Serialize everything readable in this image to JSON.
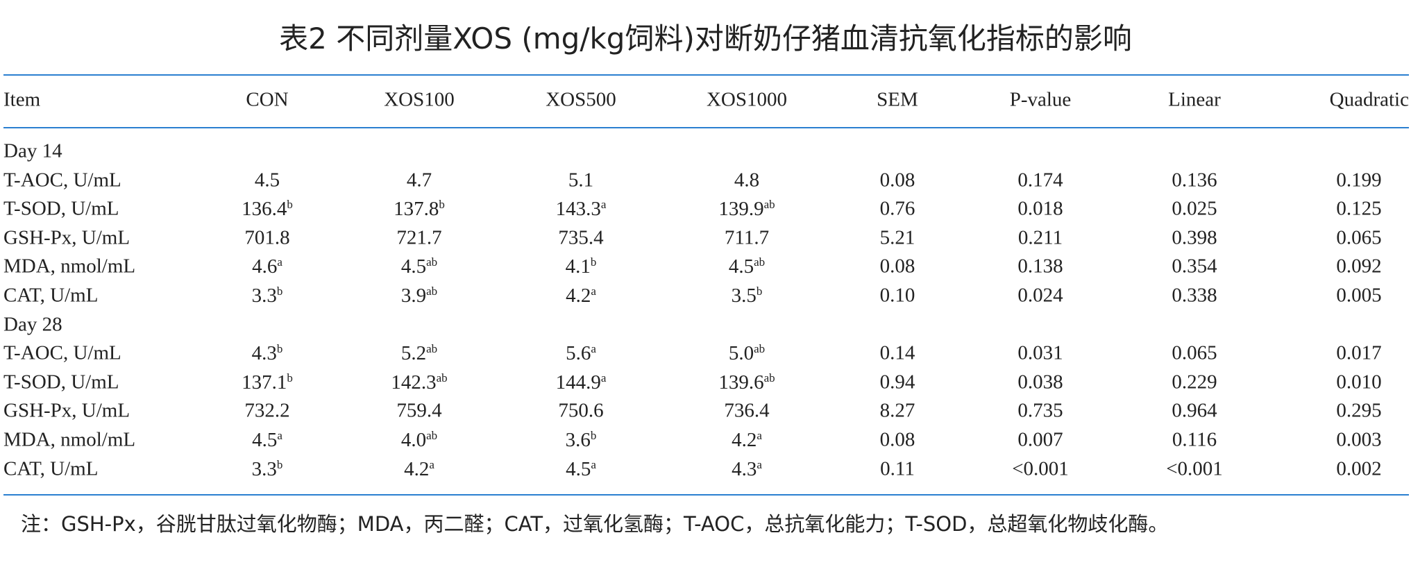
{
  "title": "表2 不同剂量XOS (mg/kg饲料)对断奶仔猪血清抗氧化指标的影响",
  "table": {
    "header": [
      "Item",
      "CON",
      "XOS100",
      "XOS500",
      "XOS1000",
      "SEM",
      "P-value",
      "Linear",
      "Quadratic"
    ],
    "groups": [
      {
        "label": "Day 14",
        "rows": [
          {
            "item": "T-AOC, U/mL",
            "cells": [
              "4.5",
              "4.7",
              "5.1",
              "4.8",
              "0.08",
              "0.174",
              "0.136",
              "0.199"
            ]
          },
          {
            "item": "T-SOD, U/mL",
            "cells": [
              {
                "text": "136.4",
                "sup": "b"
              },
              {
                "text": "137.8",
                "sup": "b"
              },
              {
                "text": "143.3",
                "sup": "a"
              },
              {
                "text": "139.9",
                "sup": "ab"
              },
              "0.76",
              "0.018",
              "0.025",
              "0.125"
            ]
          },
          {
            "item": "GSH-Px, U/mL",
            "cells": [
              "701.8",
              "721.7",
              "735.4",
              "711.7",
              "5.21",
              "0.211",
              "0.398",
              "0.065"
            ]
          },
          {
            "item": "MDA, nmol/mL",
            "cells": [
              {
                "text": "4.6",
                "sup": "a"
              },
              {
                "text": "4.5",
                "sup": "ab"
              },
              {
                "text": "4.1",
                "sup": "b"
              },
              {
                "text": "4.5",
                "sup": "ab"
              },
              "0.08",
              "0.138",
              "0.354",
              "0.092"
            ]
          },
          {
            "item": "CAT, U/mL",
            "cells": [
              {
                "text": "3.3",
                "sup": "b"
              },
              {
                "text": "3.9",
                "sup": "ab"
              },
              {
                "text": "4.2",
                "sup": "a"
              },
              {
                "text": "3.5",
                "sup": "b"
              },
              "0.10",
              "0.024",
              "0.338",
              "0.005"
            ]
          }
        ]
      },
      {
        "label": "Day 28",
        "rows": [
          {
            "item": "T-AOC, U/mL",
            "cells": [
              {
                "text": "4.3",
                "sup": "b"
              },
              {
                "text": "5.2",
                "sup": "ab"
              },
              {
                "text": "5.6",
                "sup": "a"
              },
              {
                "text": "5.0",
                "sup": "ab"
              },
              "0.14",
              "0.031",
              "0.065",
              "0.017"
            ]
          },
          {
            "item": "T-SOD, U/mL",
            "cells": [
              {
                "text": "137.1",
                "sup": "b"
              },
              {
                "text": "142.3",
                "sup": "ab"
              },
              {
                "text": "144.9",
                "sup": "a"
              },
              {
                "text": "139.6",
                "sup": "ab"
              },
              "0.94",
              "0.038",
              "0.229",
              "0.010"
            ]
          },
          {
            "item": "GSH-Px, U/mL",
            "cells": [
              "732.2",
              "759.4",
              "750.6",
              "736.4",
              "8.27",
              "0.735",
              "0.964",
              "0.295"
            ]
          },
          {
            "item": "MDA, nmol/mL",
            "cells": [
              {
                "text": "4.5",
                "sup": "a"
              },
              {
                "text": "4.0",
                "sup": "ab"
              },
              {
                "text": "3.6",
                "sup": "b"
              },
              {
                "text": "4.2",
                "sup": "a"
              },
              "0.08",
              "0.007",
              "0.116",
              "0.003"
            ]
          },
          {
            "item": "CAT, U/mL",
            "cells": [
              {
                "text": "3.3",
                "sup": "b"
              },
              {
                "text": "4.2",
                "sup": "a"
              },
              {
                "text": "4.5",
                "sup": "a"
              },
              {
                "text": "4.3",
                "sup": "a"
              },
              "0.11",
              "<0.001",
              "<0.001",
              "0.002"
            ]
          }
        ]
      }
    ]
  },
  "note": "注：GSH-Px，谷胱甘肽过氧化物酶；MDA，丙二醛；CAT，过氧化氢酶；T-AOC，总抗氧化能力；T-SOD，总超氧化物歧化酶。"
}
